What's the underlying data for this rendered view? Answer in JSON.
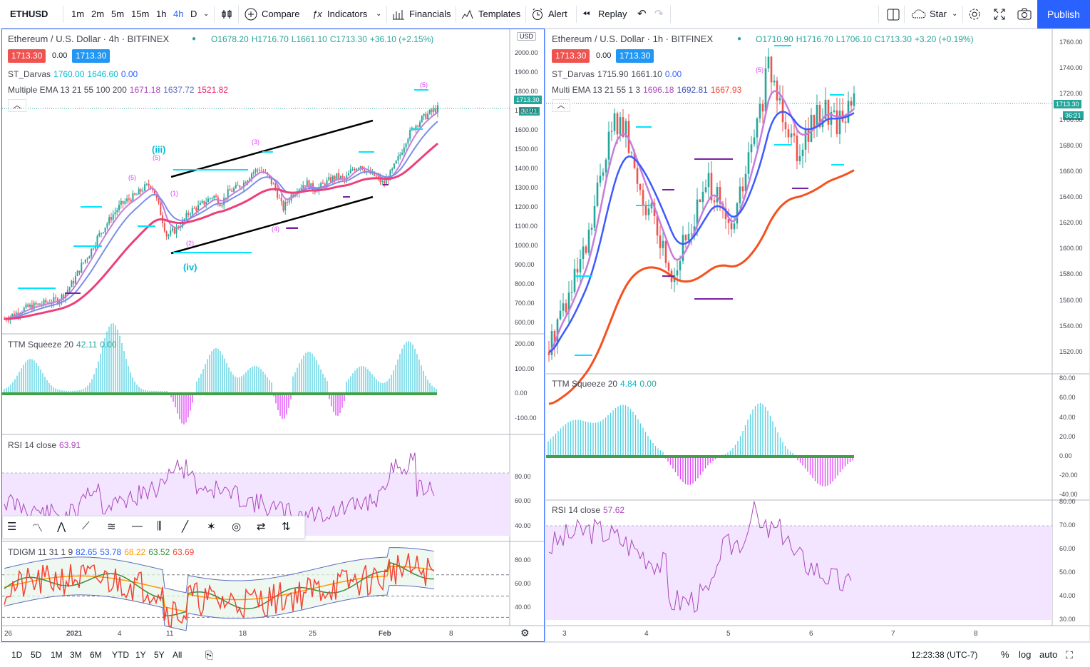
{
  "topbar": {
    "symbol": "ETHUSD",
    "intervals": [
      "1m",
      "2m",
      "5m",
      "15m",
      "1h",
      "4h",
      "D"
    ],
    "active_interval": "4h",
    "compare": "Compare",
    "indicators": "Indicators",
    "financials": "Financials",
    "templates": "Templates",
    "alert": "Alert",
    "replay": "Replay",
    "star": "Star",
    "publish": "Publish"
  },
  "colors": {
    "accent": "#2962ff",
    "red": "#ef5350",
    "green": "#26a69a",
    "ema_fast": "#c77ddb",
    "ema_mid": "#7b8fe8",
    "ema_slow": "#ec407a",
    "cyan": "#00e5ff",
    "magenta": "#e040fb",
    "purple": "#7b1fa2",
    "rsi_band": "#f3e5ff"
  },
  "left": {
    "title": "Ethereum / U.S. Dollar · 4h · BITFINEX",
    "ohlc": {
      "o": "O1678.20",
      "h": "H1716.70",
      "l": "L1661.10",
      "c": "C1713.30",
      "chg": "+36.10 (+2.15%)"
    },
    "bid": "1713.30",
    "spread": "0.00",
    "ask": "1713.30",
    "darvas": {
      "name": "ST_Darvas",
      "v1": "1760.00",
      "v2": "1646.60",
      "v3": "0.00"
    },
    "ema": {
      "name": "Multiple EMA 13 21 55 100 200",
      "v1": "1671.18",
      "v2": "1637.72",
      "v3": "1521.82"
    },
    "currency": "USD",
    "price_tag": "1713.30",
    "countdown": "36:21",
    "price_axis": [
      "2000.00",
      "1900.00",
      "1800.00",
      "1700.00",
      "1600.00",
      "1500.00",
      "1400.00",
      "1300.00",
      "1200.00",
      "1100.00",
      "1000.00",
      "900.00",
      "800.00",
      "700.00",
      "600.00"
    ],
    "wave_labels": {
      "iii": "(iii)",
      "iv": "(iv)",
      "l1": "(1)",
      "l2": "(2)",
      "l3": "(3)",
      "l4": "(4)",
      "l5a": "(5)",
      "l5b": "(5)",
      "l5c": "(5)"
    },
    "ttm": {
      "name": "TTM Squeeze 20",
      "v1": "42.11",
      "v2": "0.00",
      "axis": [
        "200.00",
        "100.00",
        "0.00",
        "-100.00"
      ]
    },
    "rsi": {
      "name": "RSI 14 close",
      "v1": "63.91",
      "axis": [
        "80.00",
        "60.00",
        "40.00"
      ]
    },
    "tdi": {
      "name": "TDIGM 11 31 1 9",
      "v1": "82.65",
      "v2": "53.78",
      "v3": "68.22",
      "v4": "63.52",
      "v5": "63.69",
      "axis": [
        "80.00",
        "60.00",
        "40.00"
      ]
    },
    "time_axis": [
      "26",
      "2021",
      "4",
      "11",
      "18",
      "25",
      "Feb",
      "8"
    ]
  },
  "right": {
    "title": "Ethereum / U.S. Dollar · 1h · BITFINEX",
    "ohlc": {
      "o": "O1710.90",
      "h": "H1716.70",
      "l": "L1706.10",
      "c": "C1713.30",
      "chg": "+3.20 (+0.19%)"
    },
    "bid": "1713.30",
    "spread": "0.00",
    "ask": "1713.30",
    "darvas": {
      "name": "ST_Darvas",
      "v1": "1715.90",
      "v2": "1661.10",
      "v3": "0.00"
    },
    "ema": {
      "name": "Multi EMA 13 21 55 1 3",
      "v1": "1696.18",
      "v2": "1692.81",
      "v3": "1667.93"
    },
    "price_tag": "1713.30",
    "countdown": "36:21",
    "price_axis": [
      "1760.00",
      "1740.00",
      "1720.00",
      "1700.00",
      "1680.00",
      "1660.00",
      "1640.00",
      "1620.00",
      "1600.00",
      "1580.00",
      "1560.00",
      "1540.00",
      "1520.00"
    ],
    "wave_label": "(5)",
    "ttm": {
      "name": "TTM Squeeze 20",
      "v1": "4.84",
      "v2": "0.00",
      "axis": [
        "80.00",
        "60.00",
        "40.00",
        "20.00",
        "0.00",
        "-20.00",
        "-40.00"
      ]
    },
    "rsi": {
      "name": "RSI 14 close",
      "v1": "57.62",
      "axis": [
        "80.00",
        "70.00",
        "60.00",
        "50.00",
        "40.00",
        "30.00"
      ]
    },
    "time_axis": [
      "3",
      "4",
      "5",
      "6",
      "7",
      "8"
    ]
  },
  "bottombar": {
    "ranges": [
      "1D",
      "5D",
      "1M",
      "3M",
      "6M",
      "YTD",
      "1Y",
      "5Y",
      "All"
    ],
    "clock": "12:23:38 (UTC-7)",
    "pct": "%",
    "log": "log",
    "auto": "auto"
  },
  "chart_data": [
    {
      "type": "candlestick",
      "title": "Ethereum / U.S. Dollar · 4h · BITFINEX",
      "ylabel": "USD",
      "ylim": [
        550,
        2050
      ],
      "x_ticks": [
        "26",
        "2021",
        "4",
        "11",
        "18",
        "25",
        "Feb",
        "8"
      ],
      "close": [
        620,
        640,
        660,
        680,
        690,
        700,
        710,
        720,
        760,
        820,
        900,
        960,
        1040,
        1100,
        1160,
        1210,
        1240,
        1260,
        1300,
        1320,
        1200,
        1050,
        1080,
        1120,
        1180,
        1200,
        1230,
        1260,
        1220,
        1280,
        1300,
        1330,
        1380,
        1400,
        1360,
        1300,
        1190,
        1260,
        1300,
        1330,
        1290,
        1310,
        1340,
        1360,
        1340,
        1400,
        1420,
        1380,
        1360,
        1320,
        1380,
        1460,
        1560,
        1620,
        1660,
        1690,
        1713
      ]
    },
    {
      "type": "candlestick",
      "title": "Ethereum / U.S. Dollar · 1h · BITFINEX",
      "ylabel": "USD",
      "ylim": [
        1505,
        1765
      ],
      "x_ticks": [
        "3",
        "4",
        "5",
        "6",
        "7",
        "8"
      ],
      "close": [
        1520,
        1550,
        1560,
        1580,
        1600,
        1640,
        1680,
        1700,
        1690,
        1660,
        1640,
        1620,
        1600,
        1580,
        1600,
        1620,
        1640,
        1650,
        1630,
        1610,
        1640,
        1670,
        1700,
        1740,
        1720,
        1700,
        1680,
        1690,
        1700,
        1710,
        1700,
        1705,
        1713
      ]
    }
  ]
}
